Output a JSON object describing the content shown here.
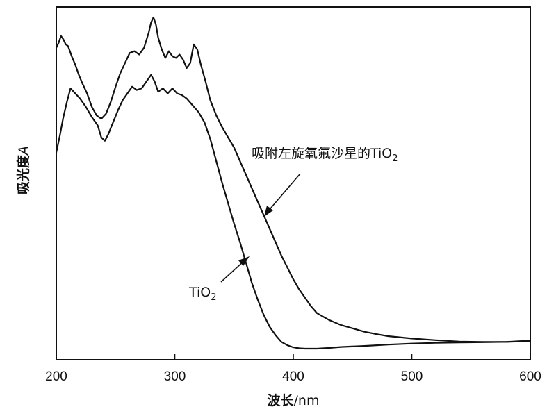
{
  "chart_data": {
    "type": "line",
    "xlabel_main": "波长",
    "xlabel_unit": "/nm",
    "ylabel_main": "吸光度",
    "ylabel_var": "A",
    "xlim": [
      200,
      600
    ],
    "ylim": [
      0,
      1
    ],
    "xticks": [
      200,
      300,
      400,
      500,
      600
    ],
    "yticks_shown": false,
    "grid": false,
    "series": [
      {
        "annotation": {
          "text": "吸附左旋氧氟沙星的TiO",
          "subscript": "2",
          "points_to": [
            375,
            0.435
          ]
        },
        "x": [
          200,
          202,
          204,
          206,
          208,
          210,
          213,
          216,
          219,
          222,
          226,
          230,
          234,
          238,
          242,
          246,
          250,
          254,
          258,
          262,
          266,
          270,
          274,
          278,
          280,
          282,
          284,
          286,
          289,
          292,
          295,
          298,
          301,
          304,
          307,
          310,
          313,
          316,
          319,
          322,
          326,
          330,
          335,
          340,
          345,
          350,
          355,
          360,
          365,
          370,
          375,
          380,
          385,
          390,
          395,
          400,
          405,
          410,
          415,
          420,
          430,
          440,
          450,
          460,
          470,
          480,
          500,
          520,
          540,
          560,
          580,
          600
        ],
        "y": [
          0.89,
          0.905,
          0.925,
          0.915,
          0.9,
          0.895,
          0.865,
          0.84,
          0.81,
          0.785,
          0.755,
          0.715,
          0.69,
          0.68,
          0.695,
          0.73,
          0.775,
          0.815,
          0.845,
          0.875,
          0.88,
          0.87,
          0.89,
          0.935,
          0.965,
          0.98,
          0.96,
          0.92,
          0.885,
          0.86,
          0.88,
          0.865,
          0.86,
          0.87,
          0.855,
          0.83,
          0.845,
          0.9,
          0.885,
          0.84,
          0.79,
          0.735,
          0.69,
          0.655,
          0.625,
          0.595,
          0.555,
          0.515,
          0.475,
          0.435,
          0.395,
          0.355,
          0.315,
          0.275,
          0.24,
          0.205,
          0.175,
          0.15,
          0.125,
          0.105,
          0.085,
          0.07,
          0.06,
          0.05,
          0.043,
          0.037,
          0.03,
          0.025,
          0.021,
          0.02,
          0.02,
          0.022
        ]
      },
      {
        "annotation": {
          "text": "TiO",
          "subscript": "2",
          "points_to": [
            360,
            0.295
          ]
        },
        "x": [
          200,
          203,
          206,
          209,
          212,
          216,
          220,
          225,
          230,
          235,
          238,
          241,
          244,
          248,
          252,
          256,
          260,
          264,
          268,
          272,
          276,
          280,
          283,
          286,
          290,
          294,
          298,
          302,
          306,
          310,
          315,
          320,
          325,
          330,
          335,
          340,
          345,
          350,
          355,
          360,
          365,
          370,
          375,
          380,
          385,
          390,
          395,
          400,
          405,
          410,
          415,
          420,
          430,
          440,
          460,
          480,
          500,
          520,
          540,
          560,
          580,
          600
        ],
        "y": [
          0.58,
          0.63,
          0.685,
          0.73,
          0.77,
          0.755,
          0.74,
          0.715,
          0.685,
          0.66,
          0.625,
          0.615,
          0.635,
          0.67,
          0.705,
          0.735,
          0.755,
          0.775,
          0.765,
          0.77,
          0.79,
          0.81,
          0.79,
          0.76,
          0.77,
          0.755,
          0.77,
          0.755,
          0.75,
          0.74,
          0.72,
          0.7,
          0.67,
          0.62,
          0.555,
          0.49,
          0.43,
          0.37,
          0.315,
          0.255,
          0.195,
          0.145,
          0.1,
          0.065,
          0.04,
          0.02,
          0.01,
          0.004,
          0.001,
          0.0,
          0.0,
          0.0,
          0.002,
          0.005,
          0.008,
          0.012,
          0.015,
          0.017,
          0.018,
          0.019,
          0.02,
          0.024
        ]
      }
    ]
  }
}
